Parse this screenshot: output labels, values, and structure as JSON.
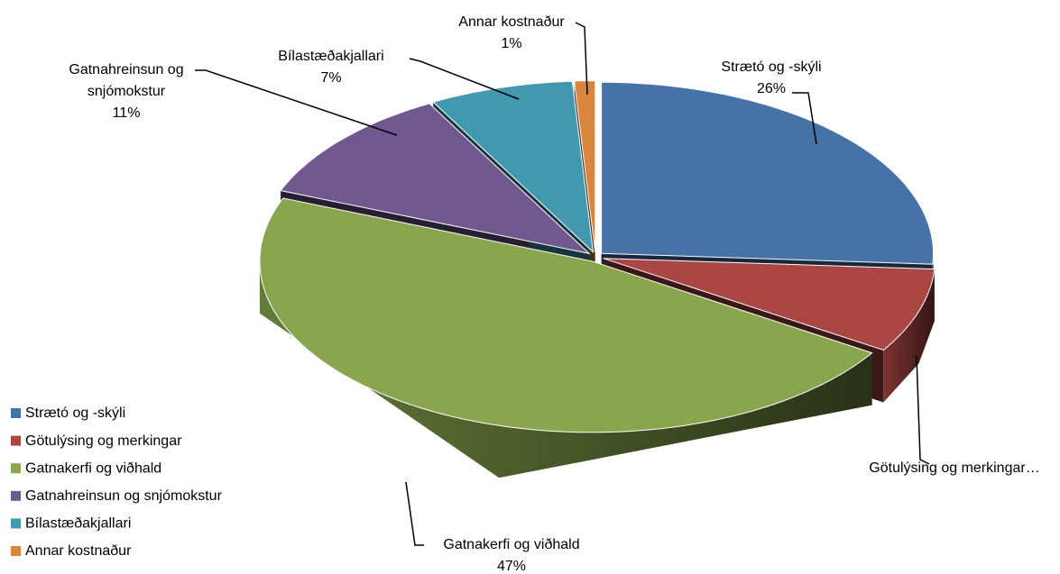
{
  "chart_data": {
    "type": "pie3d",
    "categories": [
      "Strætó og -skýli",
      "Götulýsing og merkingar",
      "Gatnakerfi og viðhald",
      "Gatnahreinsun og snjómokstur",
      "Bílastæðakjallari",
      "Annar kostnaður"
    ],
    "values": [
      26,
      8,
      47,
      11,
      7,
      1
    ],
    "value_labels": [
      "26%",
      null,
      "47%",
      "11%",
      "7%",
      "1%"
    ],
    "data_label_names": [
      "Strætó og -skýli",
      "Götulýsing og merkingar…",
      "Gatnakerfi og viðhald",
      "Gatnahreinsun og snjómokstur",
      "Bílastæðakjallari",
      "Annar kostnaður"
    ],
    "colors": [
      "#4572a7",
      "#aa4643",
      "#89a54e",
      "#71588f",
      "#4198af",
      "#db843d"
    ],
    "legend": "left"
  }
}
